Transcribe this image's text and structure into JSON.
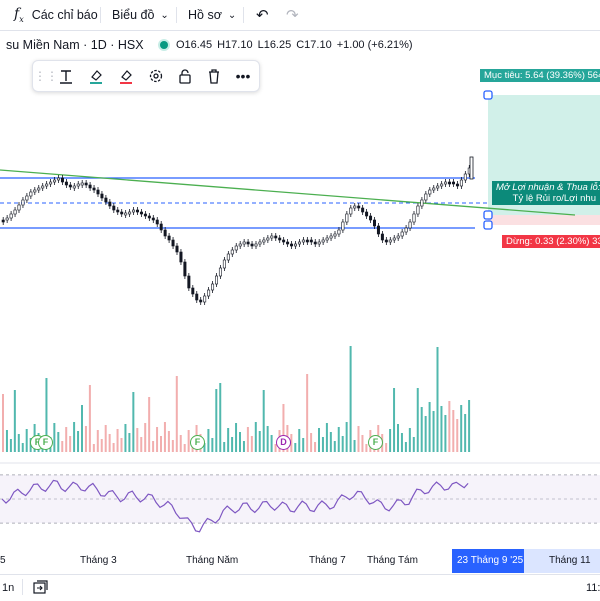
{
  "toolbar": {
    "fx_icon": "fx-icon",
    "indicators_label": "Các chỉ báo",
    "chart_label": "Biểu đồ",
    "profile_label": "Hồ sơ",
    "undo_icon": "undo-icon",
    "redo_icon": "redo-icon"
  },
  "symbol": {
    "name": "su Miền Nam · 1D · HSX",
    "open": "O16.45",
    "high": "H17.10",
    "low": "L16.25",
    "close": "C17.10",
    "change": "+1.00 (+6.21%)",
    "status_color": "#089981"
  },
  "drawing_tools": [
    "drag-handle-icon",
    "text-icon",
    "fill-icon",
    "line-color-icon",
    "settings-icon",
    "lock-icon",
    "trash-icon",
    "more-icon"
  ],
  "position": {
    "target_label": "Mục tiêu: 5.64 (39.36%) 564",
    "center_line1": "Mở Lợi nhuận & Thua lỗ:",
    "center_line2": "Tỷ lệ Rủi ro/Lợi nhu",
    "stop_label": "Dừng: 0.33 (2.30%) 33",
    "profit_color": "#26a69a",
    "stop_color": "#f23645"
  },
  "colors": {
    "candle": "#131722",
    "trendline": "#4caf50",
    "hline": "#2962ff",
    "rsi": "#7e57c2",
    "volume": "#26a69a"
  },
  "markers": [
    "F",
    "F",
    "F",
    "D",
    "F"
  ],
  "time_axis": {
    "labels": [
      "5",
      "Tháng 3",
      "Tháng Năm",
      "Tháng 7",
      "Tháng Tám",
      "Tháng 11"
    ],
    "highlight": "23 Tháng 9 '25",
    "highlight_color": "#2962ff"
  },
  "bottom": {
    "interval": "1n",
    "compare_icon": "compare-icon",
    "time": "11:"
  }
}
